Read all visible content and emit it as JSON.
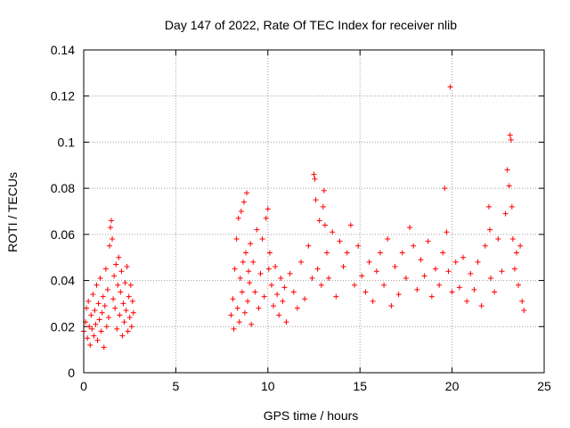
{
  "chart_data": {
    "type": "scatter",
    "title": "Day 147 of 2022, Rate Of TEC Index for receiver nlib",
    "xlabel": "GPS time / hours",
    "ylabel": "ROTI / TECUs",
    "xlim": [
      0,
      25
    ],
    "ylim": [
      0,
      0.14
    ],
    "xticks": [
      0,
      5,
      10,
      15,
      20,
      25
    ],
    "xtick_labels": [
      "0",
      "5",
      "10",
      "15",
      "20",
      "25"
    ],
    "yticks": [
      0,
      0.02,
      0.04,
      0.06,
      0.08,
      0.1,
      0.12,
      0.14
    ],
    "ytick_labels": [
      "0",
      "0.02",
      "0.04",
      "0.06",
      "0.08",
      "0.1",
      "0.12",
      "0.14"
    ],
    "grid": true,
    "marker": "+",
    "color": "#ff0000",
    "series": [
      {
        "points": [
          [
            0.0,
            0.018
          ],
          [
            0.1,
            0.022
          ],
          [
            0.15,
            0.028
          ],
          [
            0.2,
            0.015
          ],
          [
            0.25,
            0.031
          ],
          [
            0.3,
            0.02
          ],
          [
            0.35,
            0.012
          ],
          [
            0.4,
            0.025
          ],
          [
            0.45,
            0.019
          ],
          [
            0.5,
            0.034
          ],
          [
            0.55,
            0.016
          ],
          [
            0.6,
            0.027
          ],
          [
            0.65,
            0.021
          ],
          [
            0.7,
            0.038
          ],
          [
            0.75,
            0.014
          ],
          [
            0.8,
            0.03
          ],
          [
            0.85,
            0.023
          ],
          [
            0.9,
            0.041
          ],
          [
            0.95,
            0.018
          ],
          [
            1.0,
            0.026
          ],
          [
            1.05,
            0.033
          ],
          [
            1.1,
            0.011
          ],
          [
            1.15,
            0.029
          ],
          [
            1.2,
            0.045
          ],
          [
            1.25,
            0.02
          ],
          [
            1.3,
            0.036
          ],
          [
            1.35,
            0.024
          ],
          [
            1.4,
            0.055
          ],
          [
            1.45,
            0.063
          ],
          [
            1.5,
            0.066
          ],
          [
            1.55,
            0.058
          ],
          [
            1.6,
            0.032
          ],
          [
            1.65,
            0.042
          ],
          [
            1.7,
            0.028
          ],
          [
            1.75,
            0.047
          ],
          [
            1.8,
            0.019
          ],
          [
            1.85,
            0.038
          ],
          [
            1.9,
            0.05
          ],
          [
            1.95,
            0.025
          ],
          [
            2.0,
            0.035
          ],
          [
            2.05,
            0.044
          ],
          [
            2.1,
            0.016
          ],
          [
            2.15,
            0.03
          ],
          [
            2.2,
            0.022
          ],
          [
            2.25,
            0.039
          ],
          [
            2.3,
            0.027
          ],
          [
            2.35,
            0.046
          ],
          [
            2.4,
            0.018
          ],
          [
            2.45,
            0.033
          ],
          [
            2.5,
            0.024
          ],
          [
            2.55,
            0.038
          ],
          [
            2.6,
            0.02
          ],
          [
            2.65,
            0.031
          ],
          [
            2.7,
            0.026
          ],
          [
            8.0,
            0.025
          ],
          [
            8.1,
            0.032
          ],
          [
            8.15,
            0.019
          ],
          [
            8.2,
            0.045
          ],
          [
            8.3,
            0.058
          ],
          [
            8.35,
            0.028
          ],
          [
            8.4,
            0.067
          ],
          [
            8.45,
            0.022
          ],
          [
            8.5,
            0.041
          ],
          [
            8.55,
            0.07
          ],
          [
            8.6,
            0.035
          ],
          [
            8.65,
            0.048
          ],
          [
            8.7,
            0.074
          ],
          [
            8.75,
            0.026
          ],
          [
            8.8,
            0.052
          ],
          [
            8.85,
            0.078
          ],
          [
            8.9,
            0.031
          ],
          [
            8.95,
            0.044
          ],
          [
            9.0,
            0.039
          ],
          [
            9.05,
            0.056
          ],
          [
            9.1,
            0.021
          ],
          [
            9.2,
            0.048
          ],
          [
            9.3,
            0.035
          ],
          [
            9.4,
            0.062
          ],
          [
            9.5,
            0.028
          ],
          [
            9.6,
            0.043
          ],
          [
            9.7,
            0.058
          ],
          [
            9.8,
            0.033
          ],
          [
            9.9,
            0.067
          ],
          [
            10.0,
            0.071
          ],
          [
            10.05,
            0.045
          ],
          [
            10.1,
            0.052
          ],
          [
            10.2,
            0.038
          ],
          [
            10.3,
            0.029
          ],
          [
            10.4,
            0.046
          ],
          [
            10.5,
            0.034
          ],
          [
            10.6,
            0.025
          ],
          [
            10.7,
            0.041
          ],
          [
            10.8,
            0.031
          ],
          [
            10.9,
            0.037
          ],
          [
            11.0,
            0.022
          ],
          [
            11.2,
            0.043
          ],
          [
            11.4,
            0.035
          ],
          [
            11.6,
            0.028
          ],
          [
            11.8,
            0.048
          ],
          [
            12.0,
            0.032
          ],
          [
            12.2,
            0.055
          ],
          [
            12.4,
            0.041
          ],
          [
            12.5,
            0.086
          ],
          [
            12.55,
            0.084
          ],
          [
            12.6,
            0.075
          ],
          [
            12.7,
            0.045
          ],
          [
            12.8,
            0.066
          ],
          [
            12.9,
            0.038
          ],
          [
            13.0,
            0.072
          ],
          [
            13.05,
            0.079
          ],
          [
            13.1,
            0.064
          ],
          [
            13.2,
            0.052
          ],
          [
            13.3,
            0.041
          ],
          [
            13.5,
            0.061
          ],
          [
            13.7,
            0.033
          ],
          [
            13.9,
            0.057
          ],
          [
            14.1,
            0.046
          ],
          [
            14.3,
            0.052
          ],
          [
            14.5,
            0.064
          ],
          [
            14.7,
            0.038
          ],
          [
            14.9,
            0.055
          ],
          [
            15.1,
            0.042
          ],
          [
            15.3,
            0.035
          ],
          [
            15.5,
            0.048
          ],
          [
            15.7,
            0.031
          ],
          [
            15.9,
            0.044
          ],
          [
            16.1,
            0.052
          ],
          [
            16.3,
            0.038
          ],
          [
            16.5,
            0.058
          ],
          [
            16.7,
            0.029
          ],
          [
            16.9,
            0.046
          ],
          [
            17.1,
            0.034
          ],
          [
            17.3,
            0.052
          ],
          [
            17.5,
            0.041
          ],
          [
            17.7,
            0.063
          ],
          [
            17.9,
            0.055
          ],
          [
            18.1,
            0.036
          ],
          [
            18.3,
            0.049
          ],
          [
            18.5,
            0.042
          ],
          [
            18.7,
            0.057
          ],
          [
            18.9,
            0.033
          ],
          [
            19.1,
            0.045
          ],
          [
            19.3,
            0.038
          ],
          [
            19.5,
            0.052
          ],
          [
            19.6,
            0.08
          ],
          [
            19.7,
            0.061
          ],
          [
            19.8,
            0.044
          ],
          [
            19.9,
            0.124
          ],
          [
            20.0,
            0.035
          ],
          [
            20.2,
            0.048
          ],
          [
            20.4,
            0.037
          ],
          [
            20.6,
            0.05
          ],
          [
            20.8,
            0.031
          ],
          [
            21.0,
            0.043
          ],
          [
            21.2,
            0.036
          ],
          [
            21.4,
            0.048
          ],
          [
            21.6,
            0.029
          ],
          [
            21.8,
            0.055
          ],
          [
            22.0,
            0.072
          ],
          [
            22.05,
            0.062
          ],
          [
            22.1,
            0.041
          ],
          [
            22.3,
            0.035
          ],
          [
            22.5,
            0.058
          ],
          [
            22.7,
            0.044
          ],
          [
            22.9,
            0.069
          ],
          [
            23.0,
            0.088
          ],
          [
            23.1,
            0.081
          ],
          [
            23.15,
            0.103
          ],
          [
            23.2,
            0.101
          ],
          [
            23.25,
            0.072
          ],
          [
            23.3,
            0.058
          ],
          [
            23.4,
            0.045
          ],
          [
            23.5,
            0.052
          ],
          [
            23.6,
            0.038
          ],
          [
            23.7,
            0.055
          ],
          [
            23.8,
            0.031
          ],
          [
            23.9,
            0.027
          ]
        ]
      }
    ]
  }
}
